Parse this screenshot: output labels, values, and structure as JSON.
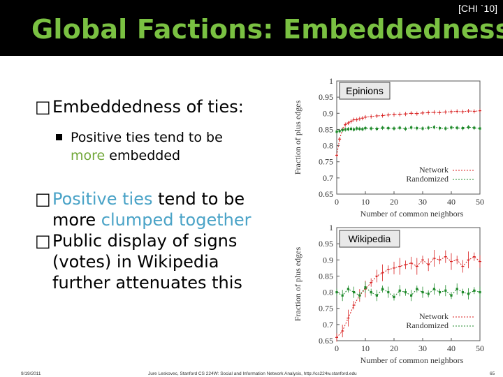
{
  "header": {
    "title": "Global Factions: Embeddedness",
    "citation": "[CHI `10]"
  },
  "bullets": [
    {
      "parts": [
        "Embeddedness of ties:"
      ]
    },
    {
      "parts": [
        "Positive ties tend to be",
        "more",
        " embedded"
      ]
    },
    {
      "parts": [
        "Positive ties",
        " tend to be",
        "more ",
        "clumped together"
      ]
    },
    {
      "parts": [
        "Public display of signs",
        "(votes) in Wikipedia",
        "further attenuates this"
      ]
    }
  ],
  "footer": {
    "date": "9/19/2011",
    "credit": "Jure Leskovec, Stanford CS 224W: Social and Information Network Analysis, http://cs224w.stanford.edu",
    "page": "65"
  },
  "colors": {
    "title": "#7ac142",
    "highlight": "#4aa3c7",
    "network": "#d81e1e",
    "randomized": "#1f8a2b"
  },
  "chart_data": [
    {
      "type": "line",
      "title": "Epinions",
      "xlabel": "Number of common neighbors",
      "ylabel": "Fraction of plus edges",
      "xlim": [
        0,
        50
      ],
      "ylim": [
        0.65,
        1
      ],
      "xticks": [
        0,
        10,
        20,
        30,
        40,
        50
      ],
      "yticks": [
        "0.65",
        "0.7",
        "0.75",
        "0.8",
        "0.85",
        "0.9",
        "0.95",
        "1"
      ],
      "x": [
        0,
        1,
        2,
        3,
        4,
        5,
        6,
        7,
        8,
        9,
        10,
        12,
        14,
        16,
        18,
        20,
        22,
        24,
        26,
        28,
        30,
        32,
        34,
        36,
        38,
        40,
        42,
        44,
        46,
        48,
        50
      ],
      "series": [
        {
          "name": "Network",
          "values": [
            0.77,
            0.82,
            0.85,
            0.865,
            0.87,
            0.875,
            0.88,
            0.88,
            0.883,
            0.885,
            0.888,
            0.89,
            0.892,
            0.893,
            0.895,
            0.896,
            0.897,
            0.898,
            0.9,
            0.899,
            0.901,
            0.902,
            0.903,
            0.902,
            0.904,
            0.905,
            0.906,
            0.905,
            0.907,
            0.906,
            0.908
          ]
        },
        {
          "name": "Randomized",
          "values": [
            0.843,
            0.845,
            0.848,
            0.85,
            0.851,
            0.852,
            0.85,
            0.853,
            0.852,
            0.851,
            0.854,
            0.853,
            0.852,
            0.855,
            0.854,
            0.853,
            0.855,
            0.852,
            0.856,
            0.854,
            0.853,
            0.855,
            0.857,
            0.854,
            0.853,
            0.856,
            0.855,
            0.854,
            0.857,
            0.855,
            0.853
          ]
        }
      ],
      "legend": "bottom-right"
    },
    {
      "type": "line",
      "title": "Wikipedia",
      "xlabel": "Number of common neighbors",
      "ylabel": "Fraction of plus edges",
      "xlim": [
        0,
        50
      ],
      "ylim": [
        0.65,
        1
      ],
      "xticks": [
        0,
        10,
        20,
        30,
        40,
        50
      ],
      "yticks": [
        "0.65",
        "0.7",
        "0.75",
        "0.8",
        "0.85",
        "0.9",
        "0.95",
        "1"
      ],
      "x": [
        0,
        2,
        4,
        6,
        8,
        10,
        12,
        14,
        16,
        18,
        20,
        22,
        24,
        26,
        28,
        30,
        32,
        34,
        36,
        38,
        40,
        42,
        44,
        46,
        48,
        50
      ],
      "series": [
        {
          "name": "Network",
          "values": [
            0.66,
            0.68,
            0.72,
            0.76,
            0.79,
            0.81,
            0.83,
            0.85,
            0.86,
            0.87,
            0.875,
            0.88,
            0.885,
            0.89,
            0.88,
            0.9,
            0.885,
            0.905,
            0.9,
            0.91,
            0.895,
            0.9,
            0.88,
            0.9,
            0.91,
            0.895
          ]
        },
        {
          "name": "Randomized",
          "values": [
            0.8,
            0.79,
            0.81,
            0.8,
            0.79,
            0.815,
            0.8,
            0.79,
            0.81,
            0.8,
            0.785,
            0.805,
            0.8,
            0.79,
            0.81,
            0.8,
            0.795,
            0.81,
            0.8,
            0.805,
            0.79,
            0.81,
            0.8,
            0.795,
            0.805,
            0.8
          ]
        }
      ],
      "legend": "bottom-right"
    }
  ]
}
